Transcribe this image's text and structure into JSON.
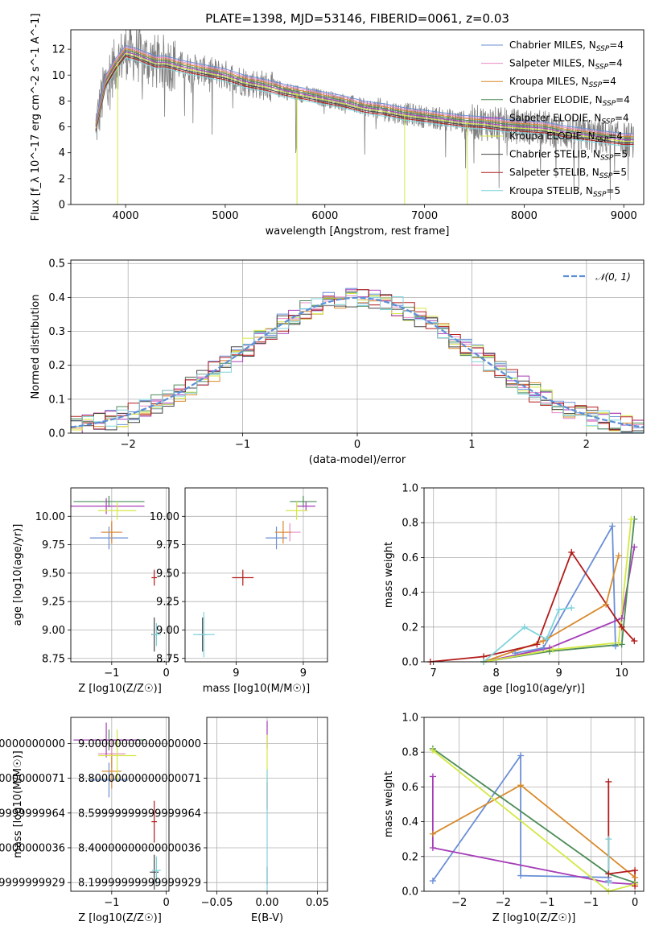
{
  "figure_title": "PLATE=1398, MJD=53146, FIBERID=0061, z=0.03",
  "chart_data": [
    {
      "type": "line",
      "title": "PLATE=1398, MJD=53146, FIBERID=0061, z=0.03",
      "xlabel": "wavelength [Angstrom, rest frame]",
      "ylabel": "Flux [f_λ 10^-17 erg cm^-2 s^-1 A^-1]",
      "xlim": [
        3450,
        9200
      ],
      "ylim": [
        0,
        13.5
      ],
      "xticks": [
        4000,
        5000,
        6000,
        7000,
        8000,
        9000
      ],
      "yticks": [
        0,
        2,
        4,
        6,
        8,
        10,
        12
      ],
      "grid": false,
      "legend_position": "top-right",
      "data_color": "#808080",
      "legend": [
        {
          "label": "Chabrier MILES, N_SSP=4",
          "color": "#6a8fd6"
        },
        {
          "label": "Salpeter MILES, N_SSP=4",
          "color": "#e78ac3"
        },
        {
          "label": "Kroupa MILES, N_SSP=4",
          "color": "#d8892a"
        },
        {
          "label": "Chabrier ELODIE, N_SSP=4",
          "color": "#4d8c57"
        },
        {
          "label": "Salpeter ELODIE, N_SSP=4",
          "color": "#a63db8"
        },
        {
          "label": "Kroupa ELODIE, N_SSP=4",
          "color": "#d4e844"
        },
        {
          "label": "Chabrier STELIB, N_SSP=5",
          "color": "#444444"
        },
        {
          "label": "Salpeter STELIB, N_SSP=5",
          "color": "#b31a1a"
        },
        {
          "label": "Kroupa STELIB, N_SSP=5",
          "color": "#7fd3dc"
        }
      ],
      "continuum": [
        [
          3700,
          6.0
        ],
        [
          3800,
          9.5
        ],
        [
          3900,
          10.8
        ],
        [
          4000,
          11.8
        ],
        [
          4100,
          11.6
        ],
        [
          4200,
          11.3
        ],
        [
          4300,
          11.0
        ],
        [
          4400,
          11.0
        ],
        [
          4600,
          10.6
        ],
        [
          4800,
          10.3
        ],
        [
          5000,
          10.0
        ],
        [
          5200,
          9.5
        ],
        [
          5400,
          9.2
        ],
        [
          5600,
          8.8
        ],
        [
          5800,
          8.5
        ],
        [
          6000,
          8.2
        ],
        [
          6200,
          7.9
        ],
        [
          6400,
          7.5
        ],
        [
          6600,
          7.3
        ],
        [
          6800,
          7.0
        ],
        [
          7000,
          6.8
        ],
        [
          7200,
          6.6
        ],
        [
          7400,
          6.4
        ],
        [
          7600,
          6.3
        ],
        [
          7800,
          6.1
        ],
        [
          8000,
          6.0
        ],
        [
          8200,
          5.9
        ],
        [
          8400,
          5.6
        ],
        [
          8600,
          5.4
        ],
        [
          8800,
          5.2
        ],
        [
          9000,
          5.0
        ]
      ],
      "dropouts": [
        [
          3920,
          0
        ],
        [
          5720,
          0
        ],
        [
          6800,
          0
        ],
        [
          7430,
          0
        ]
      ]
    },
    {
      "type": "line",
      "xlabel": "(data-model)/error",
      "ylabel": "Normed distribution",
      "xlim": [
        -2.5,
        2.5
      ],
      "ylim": [
        0,
        0.51
      ],
      "xticks": [
        -2,
        -1,
        0,
        1,
        2
      ],
      "yticks": [
        0.0,
        0.1,
        0.2,
        0.3,
        0.4,
        0.5
      ],
      "grid": true,
      "legend_position": "top-right",
      "gaussian_label": "𝒩(0, 1)",
      "gaussian_color": "#5b8fd6",
      "series_colors": [
        "#6a8fd6",
        "#e78ac3",
        "#d8892a",
        "#4d8c57",
        "#a63db8",
        "#d4e844",
        "#444444",
        "#b31a1a",
        "#7fd3dc"
      ]
    },
    {
      "type": "scatter",
      "xlabel": "Z [log10(Z/Z☉)]",
      "ylabel": "age  [log10(age/yr)]",
      "xlim": [
        -1.75,
        0.05
      ],
      "ylim": [
        8.72,
        10.25
      ],
      "xticks": [
        -1,
        0
      ],
      "yticks": [
        8.75,
        9.0,
        9.25,
        9.5,
        9.75,
        10.0
      ],
      "grid": true,
      "points": [
        {
          "color": "#6a8fd6",
          "x": -1.05,
          "xerr": 0.35,
          "y": 9.81,
          "yerr": 0.1
        },
        {
          "color": "#e78ac3",
          "x": -1.0,
          "xerr": 0.2,
          "y": 9.86,
          "yerr": 0.08
        },
        {
          "color": "#d8892a",
          "x": -1.0,
          "xerr": 0.18,
          "y": 9.86,
          "yerr": 0.1
        },
        {
          "color": "#4d8c57",
          "x": -1.05,
          "xerr": 0.65,
          "y": 10.13,
          "yerr": 0.05
        },
        {
          "color": "#a63db8",
          "x": -1.1,
          "xerr": 0.7,
          "y": 10.09,
          "yerr": 0.07
        },
        {
          "color": "#d4e844",
          "x": -0.9,
          "xerr": 0.35,
          "y": 10.05,
          "yerr": 0.08
        },
        {
          "color": "#444444",
          "x": -0.22,
          "xerr": 0.05,
          "y": 8.96,
          "yerr": 0.15
        },
        {
          "color": "#b31a1a",
          "x": -0.22,
          "xerr": 0.05,
          "y": 9.46,
          "yerr": 0.07
        },
        {
          "color": "#7fd3dc",
          "x": -0.18,
          "xerr": 0.08,
          "y": 8.96,
          "yerr": 0.1
        }
      ]
    },
    {
      "type": "scatter",
      "xlabel": "mass [log10(M/M☉)]",
      "ylabel": "",
      "xlim": [
        8.12,
        9.18
      ],
      "ylim": [
        8.72,
        10.25
      ],
      "xticks": [
        8.5,
        9.0
      ],
      "yticks": [
        8.75,
        9.0,
        9.25,
        9.5,
        9.75,
        10.0
      ],
      "grid": true,
      "points": [
        {
          "color": "#6a8fd6",
          "x": 8.8,
          "xerr": 0.08,
          "y": 9.81,
          "yerr": 0.1
        },
        {
          "color": "#e78ac3",
          "x": 8.9,
          "xerr": 0.08,
          "y": 9.86,
          "yerr": 0.08
        },
        {
          "color": "#d8892a",
          "x": 8.85,
          "xerr": 0.06,
          "y": 9.86,
          "yerr": 0.1
        },
        {
          "color": "#4d8c57",
          "x": 9.0,
          "xerr": 0.1,
          "y": 10.13,
          "yerr": 0.05
        },
        {
          "color": "#a63db8",
          "x": 9.02,
          "xerr": 0.07,
          "y": 10.09,
          "yerr": 0.04
        },
        {
          "color": "#d4e844",
          "x": 8.95,
          "xerr": 0.08,
          "y": 10.05,
          "yerr": 0.08
        },
        {
          "color": "#444444",
          "x": 8.25,
          "xerr": 0.03,
          "y": 8.96,
          "yerr": 0.15
        },
        {
          "color": "#b31a1a",
          "x": 8.55,
          "xerr": 0.08,
          "y": 9.46,
          "yerr": 0.07
        },
        {
          "color": "#7fd3dc",
          "x": 8.26,
          "xerr": 0.08,
          "y": 8.96,
          "yerr": 0.2
        }
      ]
    },
    {
      "type": "line",
      "xlabel": "age  [log10(age/yr)]",
      "ylabel": "mass weight",
      "xlim": [
        6.85,
        10.35
      ],
      "ylim": [
        0,
        1.0
      ],
      "xticks": [
        7,
        8,
        9,
        10
      ],
      "yticks": [
        0.0,
        0.2,
        0.4,
        0.6,
        0.8,
        1.0
      ],
      "grid": true,
      "series": [
        {
          "color": "#6a8fd6",
          "x": [
            8.3,
            8.75,
            9.85,
            9.9
          ],
          "y": [
            0.05,
            0.08,
            0.78,
            0.09
          ]
        },
        {
          "color": "#d8892a",
          "x": [
            7.8,
            8.75,
            9.75,
            9.95
          ],
          "y": [
            0.0,
            0.12,
            0.33,
            0.61
          ]
        },
        {
          "color": "#a63db8",
          "x": [
            7.8,
            8.85,
            10.0,
            10.2
          ],
          "y": [
            0.0,
            0.08,
            0.25,
            0.66
          ]
        },
        {
          "color": "#4d8c57",
          "x": [
            7.8,
            8.85,
            10.0,
            10.2
          ],
          "y": [
            0.0,
            0.06,
            0.1,
            0.82
          ]
        },
        {
          "color": "#d4e844",
          "x": [
            7.8,
            8.9,
            9.95,
            10.15
          ],
          "y": [
            0.0,
            0.07,
            0.11,
            0.82
          ]
        },
        {
          "color": "#b31a1a",
          "x": [
            6.95,
            7.8,
            8.65,
            9.2,
            10.0,
            10.2
          ],
          "y": [
            0.0,
            0.03,
            0.1,
            0.63,
            0.2,
            0.12
          ]
        },
        {
          "color": "#7fd3dc",
          "x": [
            7.8,
            8.45,
            8.8,
            9.0,
            9.2
          ],
          "y": [
            0.0,
            0.2,
            0.13,
            0.3,
            0.31
          ]
        }
      ]
    },
    {
      "type": "scatter",
      "xlabel": "Z [log10(Z/Z☉)]",
      "ylabel": "mass [log10(M/M☉)]",
      "xlim": [
        -1.75,
        0.05
      ],
      "ylim": [
        8.15,
        9.15
      ],
      "xticks": [
        -1,
        0
      ],
      "yticks": [
        8.2,
        8.4,
        8.6,
        8.8,
        9.0
      ],
      "grid": true,
      "points": [
        {
          "color": "#6a8fd6",
          "x": -1.05,
          "xerr": 0.35,
          "y": 8.79,
          "yerr": 0.1
        },
        {
          "color": "#e78ac3",
          "x": -1.0,
          "xerr": 0.25,
          "y": 8.94,
          "yerr": 0.08
        },
        {
          "color": "#d8892a",
          "x": -1.0,
          "xerr": 0.18,
          "y": 8.84,
          "yerr": 0.1
        },
        {
          "color": "#4d8c57",
          "x": -1.05,
          "xerr": 0.65,
          "y": 9.02,
          "yerr": 0.06
        },
        {
          "color": "#a63db8",
          "x": -1.1,
          "xerr": 0.6,
          "y": 9.02,
          "yerr": 0.1
        },
        {
          "color": "#d4e844",
          "x": -0.9,
          "xerr": 0.35,
          "y": 8.93,
          "yerr": 0.15
        },
        {
          "color": "#444444",
          "x": -0.22,
          "xerr": 0.08,
          "y": 8.26,
          "yerr": 0.1
        },
        {
          "color": "#b31a1a",
          "x": -0.22,
          "xerr": 0.05,
          "y": 8.55,
          "yerr": 0.12
        },
        {
          "color": "#7fd3dc",
          "x": -0.18,
          "xerr": 0.08,
          "y": 8.27,
          "yerr": 0.08
        }
      ]
    },
    {
      "type": "scatter",
      "xlabel": "E(B-V)",
      "ylabel": "",
      "xlim": [
        -0.06,
        0.06
      ],
      "ylim": [
        8.15,
        9.15
      ],
      "xticks": [
        -0.05,
        0.0,
        0.05
      ],
      "yticks": [
        8.2,
        8.4,
        8.6,
        8.8,
        9.0
      ],
      "grid": true,
      "points": [
        {
          "color": "#a63db8",
          "x": 0,
          "y": 9.05,
          "yerr": 0.08
        },
        {
          "color": "#b31a1a",
          "x": 0,
          "y": 8.7,
          "yerr": 0.08
        },
        {
          "color": "#d4e844",
          "x": 0,
          "y": 8.9,
          "yerr": 0.15
        },
        {
          "color": "#444444",
          "x": 0,
          "y": 8.24,
          "yerr": 0.05
        },
        {
          "color": "#7fd3dc",
          "x": 0,
          "y": 8.5,
          "yerr": 0.35
        }
      ]
    },
    {
      "type": "line",
      "xlabel": "Z [log10(Z/Z☉)]",
      "ylabel": "mass weight",
      "xlim": [
        -2.4,
        0.1
      ],
      "ylim": [
        0,
        1.0
      ],
      "xticks": [
        -2.0,
        -1.5,
        -1.0,
        -0.5,
        0.0
      ],
      "yticks": [
        0.0,
        0.2,
        0.4,
        0.6,
        0.8,
        1.0
      ],
      "grid": true,
      "series": [
        {
          "color": "#6a8fd6",
          "x": [
            -2.3,
            -1.3,
            -1.3,
            -0.3,
            -0.3
          ],
          "y": [
            0.06,
            0.78,
            0.09,
            0.08,
            0.06
          ]
        },
        {
          "color": "#d8892a",
          "x": [
            -2.3,
            -1.3,
            0.0,
            0.0
          ],
          "y": [
            0.33,
            0.61,
            0.08,
            0.05
          ]
        },
        {
          "color": "#a63db8",
          "x": [
            -2.3,
            -2.3,
            -0.3,
            0.0
          ],
          "y": [
            0.66,
            0.25,
            0.05,
            0.04
          ]
        },
        {
          "color": "#4d8c57",
          "x": [
            -2.3,
            -0.3,
            0.0
          ],
          "y": [
            0.82,
            0.1,
            0.05
          ]
        },
        {
          "color": "#d4e844",
          "x": [
            -2.3,
            -0.3,
            0.0
          ],
          "y": [
            0.81,
            0.0,
            0.04
          ]
        },
        {
          "color": "#b31a1a",
          "x": [
            -0.3,
            -0.3,
            0.0,
            0.0
          ],
          "y": [
            0.63,
            0.1,
            0.12,
            0.03
          ]
        },
        {
          "color": "#7fd3dc",
          "x": [
            -0.3,
            -0.3
          ],
          "y": [
            0.3,
            0.05
          ]
        }
      ]
    }
  ]
}
